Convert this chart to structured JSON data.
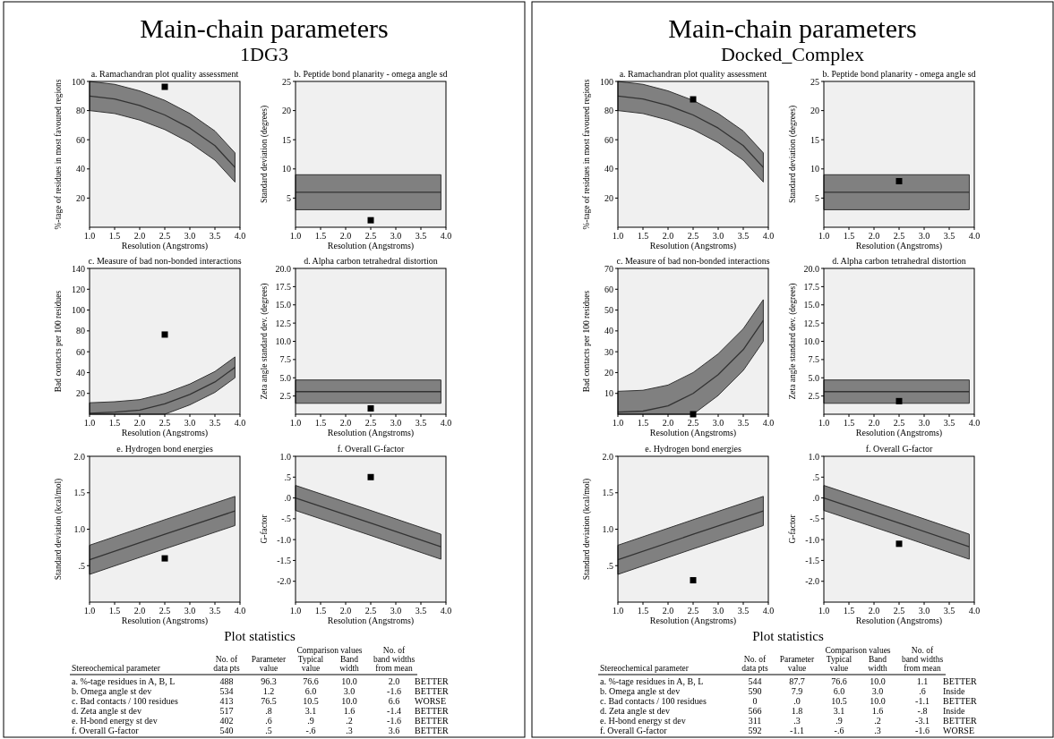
{
  "chart_data": [
    {
      "type": "other",
      "title": "Main-chain parameters",
      "subtitle": "1DG3"
    },
    {
      "type": "line",
      "title": "a. Ramachandran plot quality assessment",
      "xlabel": "Resolution (Angstroms)",
      "ylabel": "%-tage of residues in most favoured regions",
      "x": [
        1,
        1.5,
        2,
        2.5,
        3,
        3.5,
        3.9
      ],
      "xlim": [
        1,
        4
      ],
      "xticks": [
        {
          "value": 1,
          "label": "1.0"
        },
        1.5,
        {
          "value": 2,
          "label": "2.0"
        },
        2.5,
        {
          "value": 3,
          "label": "3.0"
        },
        3.5,
        {
          "value": 4,
          "label": "4.0"
        }
      ],
      "ylim": [
        0,
        100
      ],
      "yticks": [
        20,
        40,
        60,
        80,
        100
      ],
      "series": [
        {
          "type": "line",
          "color": "#333333",
          "values": [
            90,
            88,
            83.5,
            77,
            68,
            56,
            41
          ],
          "lower": [
            80,
            78,
            73.5,
            67,
            58,
            46,
            31
          ],
          "upper": [
            100,
            98,
            93.5,
            87,
            78,
            66,
            51
          ]
        },
        {
          "type": "scatter",
          "color": "#000000",
          "marker": "square",
          "values": [
            null,
            null,
            null,
            96.3,
            null,
            null,
            null
          ]
        }
      ]
    },
    {
      "type": "line",
      "title": "b. Peptide bond planarity - omega angle sd",
      "xlabel": "Resolution (Angstroms)",
      "ylabel": "Standard deviation (degrees)",
      "x": [
        1,
        2.5,
        3.9
      ],
      "xlim": [
        1,
        4
      ],
      "xticks": [
        {
          "value": 1,
          "label": "1.0"
        },
        1.5,
        {
          "value": 2,
          "label": "2.0"
        },
        2.5,
        {
          "value": 3,
          "label": "3.0"
        },
        3.5,
        {
          "value": 4,
          "label": "4.0"
        }
      ],
      "ylim": [
        0,
        25
      ],
      "yticks": [
        5,
        10,
        15,
        20,
        25
      ],
      "series": [
        {
          "type": "line",
          "color": "#333333",
          "values": [
            6,
            6,
            6
          ],
          "lower": [
            3,
            3,
            3
          ],
          "upper": [
            9,
            9,
            9
          ]
        },
        {
          "type": "scatter",
          "color": "#000000",
          "marker": "square",
          "values": [
            null,
            1.2,
            null
          ]
        }
      ]
    },
    {
      "type": "line",
      "title": "c. Measure of bad non-bonded interactions",
      "xlabel": "Resolution (Angstroms)",
      "ylabel": "Bad contacts per 100 residues",
      "x": [
        1,
        1.5,
        2,
        2.5,
        3,
        3.5,
        3.9
      ],
      "xlim": [
        1,
        4
      ],
      "xticks": [
        {
          "value": 1,
          "label": "1.0"
        },
        1.5,
        {
          "value": 2,
          "label": "2.0"
        },
        2.5,
        {
          "value": 3,
          "label": "3.0"
        },
        3.5,
        {
          "value": 4,
          "label": "4.0"
        }
      ],
      "ylim": [
        0,
        140
      ],
      "yticks": [
        20,
        40,
        60,
        80,
        100,
        120,
        140
      ],
      "series": [
        {
          "type": "line",
          "color": "#333333",
          "values": [
            1,
            2,
            4,
            10,
            19,
            31,
            45
          ],
          "lower": [
            0,
            0,
            0,
            0,
            9,
            21,
            35
          ],
          "upper": [
            11,
            12,
            14,
            20,
            29,
            41,
            55
          ]
        },
        {
          "type": "scatter",
          "color": "#000000",
          "marker": "square",
          "values": [
            null,
            null,
            null,
            76.5,
            null,
            null,
            null
          ]
        }
      ]
    },
    {
      "type": "line",
      "title": "d. Alpha carbon tetrahedral distortion",
      "xlabel": "Resolution (Angstroms)",
      "ylabel": "Zeta angle standard dev. (degrees)",
      "x": [
        1,
        2.5,
        3.9
      ],
      "xlim": [
        1,
        4
      ],
      "xticks": [
        {
          "value": 1,
          "label": "1.0"
        },
        1.5,
        {
          "value": 2,
          "label": "2.0"
        },
        2.5,
        {
          "value": 3,
          "label": "3.0"
        },
        3.5,
        {
          "value": 4,
          "label": "4.0"
        }
      ],
      "ylim": [
        0,
        20
      ],
      "yticks": [
        2.5,
        {
          "value": 5,
          "label": "5.0"
        },
        7.5,
        {
          "value": 10,
          "label": "10.0"
        },
        12.5,
        {
          "value": 15,
          "label": "15.0"
        },
        17.5,
        {
          "value": 20,
          "label": "20.0"
        }
      ],
      "series": [
        {
          "type": "line",
          "color": "#333333",
          "values": [
            3.1,
            3.1,
            3.1
          ],
          "lower": [
            1.5,
            1.5,
            1.5
          ],
          "upper": [
            4.7,
            4.7,
            4.7
          ]
        },
        {
          "type": "scatter",
          "color": "#000000",
          "marker": "square",
          "values": [
            null,
            0.8,
            null
          ]
        }
      ]
    },
    {
      "type": "line",
      "title": "e. Hydrogen bond energies",
      "xlabel": "Resolution (Angstroms)",
      "ylabel": "Standard deviation (kcal/mol)",
      "x": [
        1,
        2.5,
        3.9
      ],
      "xlim": [
        1,
        4
      ],
      "xticks": [
        {
          "value": 1,
          "label": "1.0"
        },
        1.5,
        {
          "value": 2,
          "label": "2.0"
        },
        2.5,
        {
          "value": 3,
          "label": "3.0"
        },
        3.5,
        {
          "value": 4,
          "label": "4.0"
        }
      ],
      "ylim": [
        0,
        2
      ],
      "yticks": [
        {
          "value": 0.5,
          "label": ".5"
        },
        {
          "value": 1,
          "label": "1.0"
        },
        1.5,
        {
          "value": 2,
          "label": "2.0"
        }
      ],
      "series": [
        {
          "type": "line",
          "color": "#333333",
          "values": [
            0.58,
            0.93,
            1.25
          ],
          "lower": [
            0.38,
            0.73,
            1.05
          ],
          "upper": [
            0.78,
            1.13,
            1.45
          ]
        },
        {
          "type": "scatter",
          "color": "#000000",
          "marker": "square",
          "values": [
            null,
            0.6,
            null
          ]
        }
      ]
    },
    {
      "type": "line",
      "title": "f. Overall G-factor",
      "xlabel": "Resolution (Angstroms)",
      "ylabel": "G-factor",
      "x": [
        1,
        2.5,
        3.9
      ],
      "xlim": [
        1,
        4
      ],
      "xticks": [
        {
          "value": 1,
          "label": "1.0"
        },
        1.5,
        {
          "value": 2,
          "label": "2.0"
        },
        2.5,
        {
          "value": 3,
          "label": "3.0"
        },
        3.5,
        {
          "value": 4,
          "label": "4.0"
        }
      ],
      "ylim": [
        -2.5,
        1
      ],
      "yticks": [
        {
          "value": 1,
          "label": "1.0"
        },
        {
          "value": 0.5,
          "label": ".5"
        },
        {
          "value": 0,
          "label": ".0"
        },
        {
          "value": -0.5,
          "label": "-.5"
        },
        {
          "value": -1,
          "label": "-1.0"
        },
        -1.5,
        {
          "value": -2,
          "label": "-2.0"
        }
      ],
      "series": [
        {
          "type": "line",
          "color": "#333333",
          "values": [
            0,
            -0.6,
            -1.17
          ],
          "lower": [
            -0.3,
            -0.9,
            -1.47
          ],
          "upper": [
            0.3,
            -0.3,
            -0.87
          ]
        },
        {
          "type": "scatter",
          "color": "#000000",
          "marker": "square",
          "values": [
            null,
            0.5,
            null
          ]
        }
      ]
    },
    {
      "type": "other",
      "title": "Plot statistics",
      "annotations": [
        "Comparison values",
        "Stereochemical parameter",
        "No. of\ndata pts",
        "Parameter\nvalue",
        "Typical\nvalue",
        "Band\nwidth",
        "No. of\nband widths\nfrom mean",
        "a. %-tage residues in A, B, L",
        "488",
        "96.3",
        "76.6",
        "10.0",
        "2.0",
        "BETTER",
        "b. Omega angle st dev",
        "534",
        "1.2",
        "6.0",
        "3.0",
        "-1.6",
        "BETTER",
        "c. Bad contacts / 100 residues",
        "413",
        "76.5",
        "10.5",
        "10.0",
        "6.6",
        "WORSE",
        "d. Zeta angle st dev",
        "517",
        ".8",
        "3.1",
        "1.6",
        "-1.4",
        "BETTER",
        "e. H-bond energy st dev",
        "402",
        ".6",
        ".9",
        ".2",
        "-1.6",
        "BETTER",
        "f. Overall G-factor",
        "540",
        ".5",
        "-.6",
        ".3",
        "3.6",
        "BETTER"
      ]
    },
    {
      "type": "other",
      "title": "Main-chain parameters",
      "subtitle": "Docked_Complex"
    },
    {
      "type": "line",
      "title": "a. Ramachandran plot quality assessment",
      "xlabel": "Resolution (Angstroms)",
      "ylabel": "%-tage of residues in most favoured regions",
      "x": [
        1,
        1.5,
        2,
        2.5,
        3,
        3.5,
        3.9
      ],
      "xlim": [
        1,
        4
      ],
      "xticks": [
        {
          "value": 1,
          "label": "1.0"
        },
        1.5,
        {
          "value": 2,
          "label": "2.0"
        },
        2.5,
        {
          "value": 3,
          "label": "3.0"
        },
        3.5,
        {
          "value": 4,
          "label": "4.0"
        }
      ],
      "ylim": [
        0,
        100
      ],
      "yticks": [
        20,
        40,
        60,
        80,
        100
      ],
      "series": [
        {
          "type": "line",
          "color": "#333333",
          "values": [
            90,
            88,
            83.5,
            77,
            68,
            56,
            41
          ],
          "lower": [
            80,
            78,
            73.5,
            67,
            58,
            46,
            31
          ],
          "upper": [
            100,
            98,
            93.5,
            87,
            78,
            66,
            51
          ]
        },
        {
          "type": "scatter",
          "color": "#000000",
          "marker": "square",
          "values": [
            null,
            null,
            null,
            87.7,
            null,
            null,
            null
          ]
        }
      ]
    },
    {
      "type": "line",
      "title": "b. Peptide bond planarity - omega angle sd",
      "xlabel": "Resolution (Angstroms)",
      "ylabel": "Standard deviation (degrees)",
      "x": [
        1,
        2.5,
        3.9
      ],
      "xlim": [
        1,
        4
      ],
      "xticks": [
        {
          "value": 1,
          "label": "1.0"
        },
        1.5,
        {
          "value": 2,
          "label": "2.0"
        },
        2.5,
        {
          "value": 3,
          "label": "3.0"
        },
        3.5,
        {
          "value": 4,
          "label": "4.0"
        }
      ],
      "ylim": [
        0,
        25
      ],
      "yticks": [
        5,
        10,
        15,
        20,
        25
      ],
      "series": [
        {
          "type": "line",
          "color": "#333333",
          "values": [
            6,
            6,
            6
          ],
          "lower": [
            3,
            3,
            3
          ],
          "upper": [
            9,
            9,
            9
          ]
        },
        {
          "type": "scatter",
          "color": "#000000",
          "marker": "square",
          "values": [
            null,
            7.9,
            null
          ]
        }
      ]
    },
    {
      "type": "line",
      "title": "c. Measure of bad non-bonded interactions",
      "xlabel": "Resolution (Angstroms)",
      "ylabel": "Bad contacts per 100 residues",
      "x": [
        1,
        1.5,
        2,
        2.5,
        3,
        3.5,
        3.9
      ],
      "xlim": [
        1,
        4
      ],
      "xticks": [
        {
          "value": 1,
          "label": "1.0"
        },
        1.5,
        {
          "value": 2,
          "label": "2.0"
        },
        2.5,
        {
          "value": 3,
          "label": "3.0"
        },
        3.5,
        {
          "value": 4,
          "label": "4.0"
        }
      ],
      "ylim": [
        0,
        70
      ],
      "yticks": [
        10,
        20,
        30,
        40,
        50,
        60,
        70
      ],
      "series": [
        {
          "type": "line",
          "color": "#333333",
          "values": [
            1,
            1.5,
            4,
            10,
            19,
            31,
            45
          ],
          "lower": [
            0,
            0,
            0,
            0,
            9,
            21,
            35
          ],
          "upper": [
            11,
            11.5,
            14,
            20,
            29,
            41,
            55
          ]
        },
        {
          "type": "scatter",
          "color": "#000000",
          "marker": "square",
          "values": [
            null,
            null,
            null,
            0,
            null,
            null,
            null
          ]
        }
      ]
    },
    {
      "type": "line",
      "title": "d. Alpha carbon tetrahedral distortion",
      "xlabel": "Resolution (Angstroms)",
      "ylabel": "Zeta angle standard dev. (degrees)",
      "x": [
        1,
        2.5,
        3.9
      ],
      "xlim": [
        1,
        4
      ],
      "xticks": [
        {
          "value": 1,
          "label": "1.0"
        },
        1.5,
        {
          "value": 2,
          "label": "2.0"
        },
        2.5,
        {
          "value": 3,
          "label": "3.0"
        },
        3.5,
        {
          "value": 4,
          "label": "4.0"
        }
      ],
      "ylim": [
        0,
        20
      ],
      "yticks": [
        2.5,
        {
          "value": 5,
          "label": "5.0"
        },
        7.5,
        {
          "value": 10,
          "label": "10.0"
        },
        12.5,
        {
          "value": 15,
          "label": "15.0"
        },
        17.5,
        {
          "value": 20,
          "label": "20.0"
        }
      ],
      "series": [
        {
          "type": "line",
          "color": "#333333",
          "values": [
            3.1,
            3.1,
            3.1
          ],
          "lower": [
            1.5,
            1.5,
            1.5
          ],
          "upper": [
            4.7,
            4.7,
            4.7
          ]
        },
        {
          "type": "scatter",
          "color": "#000000",
          "marker": "square",
          "values": [
            null,
            1.8,
            null
          ]
        }
      ]
    },
    {
      "type": "line",
      "title": "e. Hydrogen bond energies",
      "xlabel": "Resolution (Angstroms)",
      "ylabel": "Standard deviation (kcal/mol)",
      "x": [
        1,
        2.5,
        3.9
      ],
      "xlim": [
        1,
        4
      ],
      "xticks": [
        {
          "value": 1,
          "label": "1.0"
        },
        1.5,
        {
          "value": 2,
          "label": "2.0"
        },
        2.5,
        {
          "value": 3,
          "label": "3.0"
        },
        3.5,
        {
          "value": 4,
          "label": "4.0"
        }
      ],
      "ylim": [
        0,
        2
      ],
      "yticks": [
        {
          "value": 0.5,
          "label": ".5"
        },
        {
          "value": 1,
          "label": "1.0"
        },
        1.5,
        {
          "value": 2,
          "label": "2.0"
        }
      ],
      "series": [
        {
          "type": "line",
          "color": "#333333",
          "values": [
            0.58,
            0.93,
            1.25
          ],
          "lower": [
            0.38,
            0.73,
            1.05
          ],
          "upper": [
            0.78,
            1.13,
            1.45
          ]
        },
        {
          "type": "scatter",
          "color": "#000000",
          "marker": "square",
          "values": [
            null,
            0.3,
            null
          ]
        }
      ]
    },
    {
      "type": "line",
      "title": "f. Overall G-factor",
      "xlabel": "Resolution (Angstroms)",
      "ylabel": "G-factor",
      "x": [
        1,
        2.5,
        3.9
      ],
      "xlim": [
        1,
        4
      ],
      "xticks": [
        {
          "value": 1,
          "label": "1.0"
        },
        1.5,
        {
          "value": 2,
          "label": "2.0"
        },
        2.5,
        {
          "value": 3,
          "label": "3.0"
        },
        3.5,
        {
          "value": 4,
          "label": "4.0"
        }
      ],
      "ylim": [
        -2.5,
        1
      ],
      "yticks": [
        {
          "value": 1,
          "label": "1.0"
        },
        {
          "value": 0.5,
          "label": ".5"
        },
        {
          "value": 0,
          "label": ".0"
        },
        {
          "value": -0.5,
          "label": "-.5"
        },
        {
          "value": -1,
          "label": "-1.0"
        },
        -1.5,
        {
          "value": -2,
          "label": "-2.0"
        }
      ],
      "series": [
        {
          "type": "line",
          "color": "#333333",
          "values": [
            0,
            -0.6,
            -1.17
          ],
          "lower": [
            -0.3,
            -0.9,
            -1.47
          ],
          "upper": [
            0.3,
            -0.3,
            -0.87
          ]
        },
        {
          "type": "scatter",
          "color": "#000000",
          "marker": "square",
          "values": [
            null,
            -1.1,
            null
          ]
        }
      ]
    },
    {
      "type": "other",
      "title": "Plot statistics",
      "annotations": [
        "Comparison values",
        "Stereochemical parameter",
        "No. of\ndata pts",
        "Parameter\nvalue",
        "Typical\nvalue",
        "Band\nwidth",
        "No. of\nband widths\nfrom mean",
        "a. %-tage residues in A, B, L",
        "544",
        "87.7",
        "76.6",
        "10.0",
        "1.1",
        "BETTER",
        "b. Omega angle st dev",
        "590",
        "7.9",
        "6.0",
        "3.0",
        ".6",
        "Inside",
        "c. Bad contacts / 100 residues",
        "0",
        ".0",
        "10.5",
        "10.0",
        "-1.1",
        "BETTER",
        "d. Zeta angle st dev",
        "566",
        "1.8",
        "3.1",
        "1.6",
        "-.8",
        "Inside",
        "e. H-bond energy st dev",
        "311",
        ".3",
        ".9",
        ".2",
        "-3.1",
        "BETTER",
        "f. Overall G-factor",
        "592",
        "-1.1",
        "-.6",
        ".3",
        "-1.6",
        "WORSE"
      ]
    }
  ]
}
